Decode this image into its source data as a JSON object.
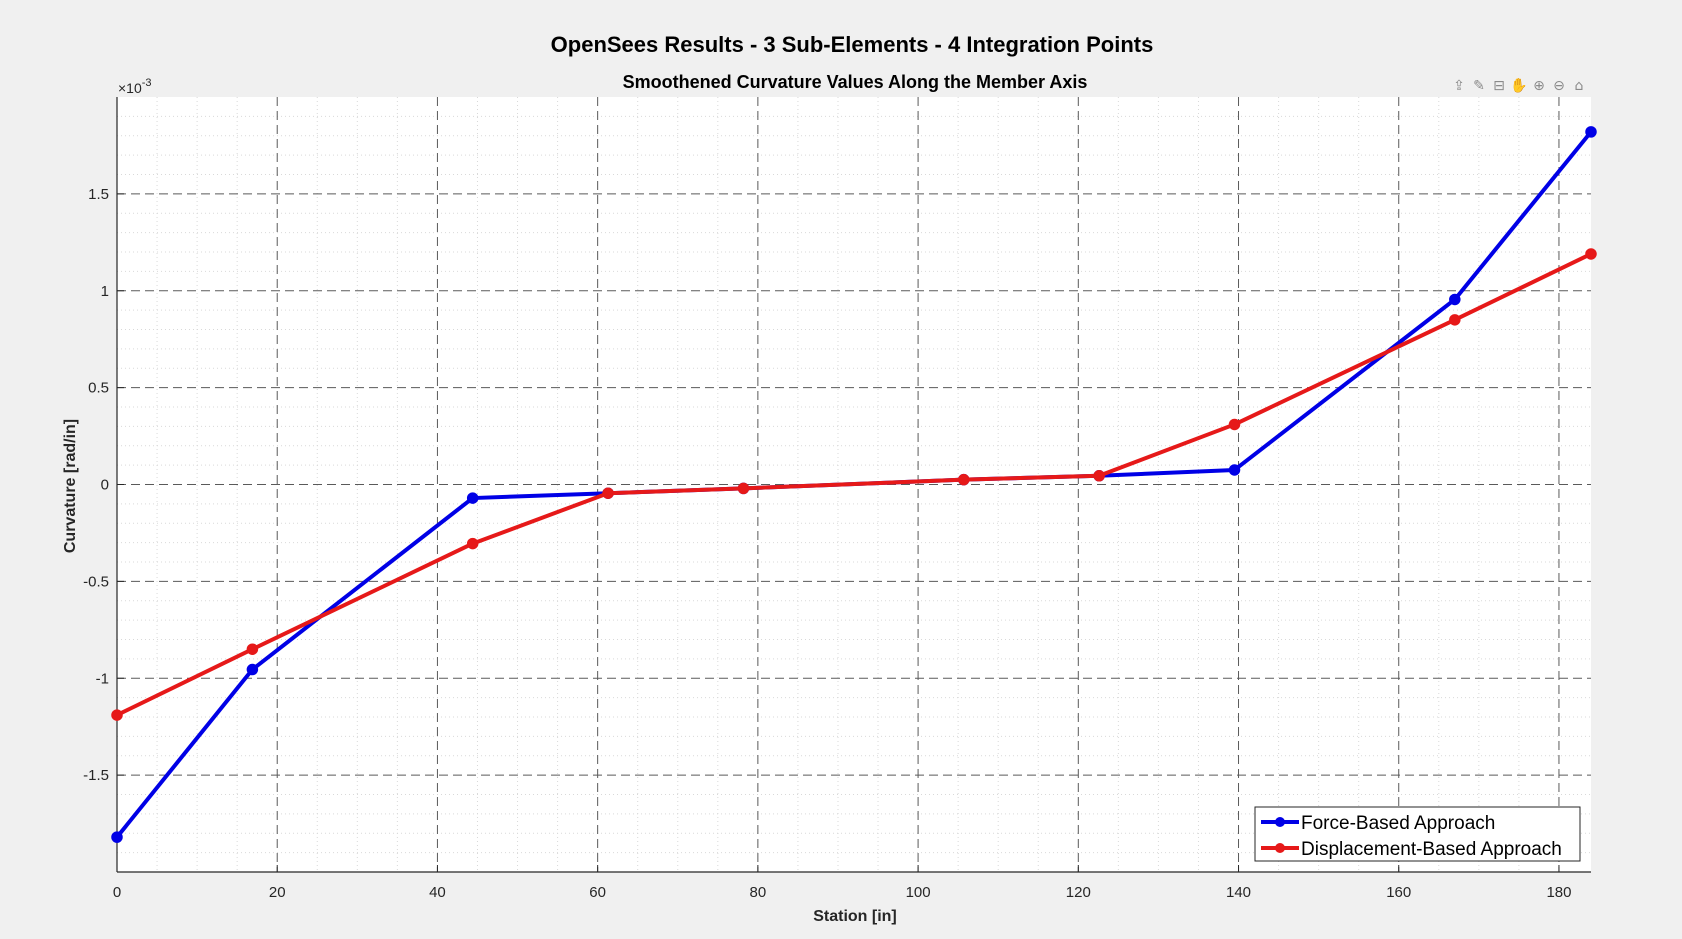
{
  "figure": {
    "background": "#f0f0f0",
    "toolbar": [
      {
        "name": "export-icon",
        "glyph": "⇪"
      },
      {
        "name": "brush-icon",
        "glyph": "✎"
      },
      {
        "name": "datatip-icon",
        "glyph": "⊟"
      },
      {
        "name": "pan-icon",
        "glyph": "✋"
      },
      {
        "name": "zoom-in-icon",
        "glyph": "⊕"
      },
      {
        "name": "zoom-out-icon",
        "glyph": "⊖"
      },
      {
        "name": "home-icon",
        "glyph": "⌂"
      }
    ]
  },
  "chart_data": {
    "type": "line",
    "title": "OpenSees Results - 3 Sub-Elements - 4 Integration Points",
    "subtitle": "Smoothened Curvature Values Along the Member Axis",
    "xlabel": "Station [in]",
    "ylabel": "Curvature [rad/in]",
    "y_exponent_label": "×10",
    "y_exponent_power": "-3",
    "xlim": [
      0,
      184
    ],
    "ylim": [
      -2.0,
      2.0
    ],
    "y_scale": 0.001,
    "xticks": [
      0,
      20,
      40,
      60,
      80,
      100,
      120,
      140,
      160,
      180
    ],
    "xtick_labels": [
      "0",
      "20",
      "40",
      "60",
      "80",
      "100",
      "120",
      "140",
      "160",
      "180"
    ],
    "yticks": [
      -1.5,
      -1,
      -0.5,
      0,
      0.5,
      1,
      1.5
    ],
    "ytick_labels": [
      "-1.5",
      "-1",
      "-0.5",
      "0",
      "0.5",
      "1",
      "1.5"
    ],
    "grid": true,
    "minor_grid": true,
    "legend_position": "bottom-right",
    "series": [
      {
        "name": "Force-Based Approach",
        "color": "#0000e6",
        "x": [
          0,
          16.9,
          44.4,
          61.3,
          78.2,
          105.7,
          122.6,
          139.5,
          167.0,
          184.0
        ],
        "y": [
          -1.82,
          -0.955,
          -0.07,
          -0.045,
          -0.02,
          0.025,
          0.045,
          0.075,
          0.955,
          1.82
        ]
      },
      {
        "name": "Displacement-Based Approach",
        "color": "#e61919",
        "x": [
          0,
          16.9,
          44.4,
          61.3,
          78.2,
          105.7,
          122.6,
          139.5,
          167.0,
          184.0
        ],
        "y": [
          -1.19,
          -0.85,
          -0.305,
          -0.045,
          -0.02,
          0.025,
          0.045,
          0.31,
          0.85,
          1.19
        ]
      }
    ]
  }
}
